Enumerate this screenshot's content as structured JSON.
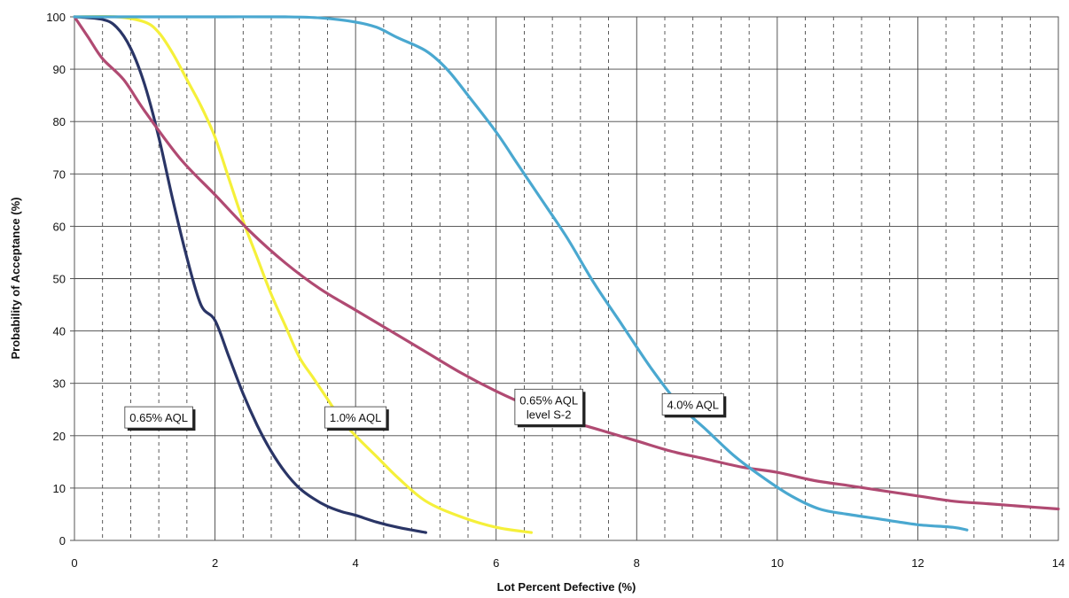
{
  "chart_data": {
    "type": "line",
    "xlabel": "Lot Percent Defective (%)",
    "ylabel": "Probability of Acceptance (%)",
    "xlim": [
      0,
      14
    ],
    "ylim": [
      0,
      100
    ],
    "x_ticks": [
      0,
      2,
      4,
      6,
      8,
      10,
      12,
      14
    ],
    "y_ticks": [
      0,
      10,
      20,
      30,
      40,
      50,
      60,
      70,
      80,
      90,
      100
    ],
    "minor_x_gridlines": true,
    "y_gridlines": true,
    "legend": "none",
    "series": [
      {
        "name": "0.65% AQL",
        "color": "#2a3566",
        "points": [
          [
            0,
            100
          ],
          [
            0.4,
            99.5
          ],
          [
            0.6,
            98
          ],
          [
            0.8,
            94
          ],
          [
            1.0,
            87
          ],
          [
            1.2,
            77
          ],
          [
            1.4,
            65
          ],
          [
            1.6,
            54
          ],
          [
            1.8,
            45
          ],
          [
            2.0,
            42
          ],
          [
            2.2,
            35
          ],
          [
            2.4,
            28
          ],
          [
            2.6,
            22
          ],
          [
            2.8,
            17
          ],
          [
            3.0,
            13
          ],
          [
            3.2,
            10
          ],
          [
            3.4,
            8
          ],
          [
            3.6,
            6.5
          ],
          [
            3.8,
            5.5
          ],
          [
            4.0,
            4.8
          ],
          [
            4.3,
            3.5
          ],
          [
            4.6,
            2.5
          ],
          [
            5.0,
            1.5
          ]
        ]
      },
      {
        "name": "1.0% AQL",
        "color": "#f5f03a",
        "points": [
          [
            0,
            100
          ],
          [
            0.6,
            100
          ],
          [
            1.0,
            99
          ],
          [
            1.2,
            97
          ],
          [
            1.4,
            93
          ],
          [
            1.6,
            88
          ],
          [
            1.8,
            83
          ],
          [
            2.0,
            77
          ],
          [
            2.2,
            69
          ],
          [
            2.4,
            61
          ],
          [
            2.6,
            54
          ],
          [
            2.8,
            47
          ],
          [
            3.0,
            41
          ],
          [
            3.2,
            35
          ],
          [
            3.4,
            31
          ],
          [
            3.6,
            27
          ],
          [
            3.8,
            23
          ],
          [
            4.0,
            20
          ],
          [
            4.3,
            16
          ],
          [
            4.6,
            12
          ],
          [
            5.0,
            7.5
          ],
          [
            5.5,
            4.5
          ],
          [
            6.0,
            2.5
          ],
          [
            6.5,
            1.5
          ]
        ]
      },
      {
        "name": "0.65% AQL level S-2",
        "color": "#b04a72",
        "points": [
          [
            0,
            100
          ],
          [
            0.2,
            96
          ],
          [
            0.4,
            92
          ],
          [
            0.7,
            88
          ],
          [
            1.0,
            82
          ],
          [
            1.5,
            73
          ],
          [
            2.0,
            66
          ],
          [
            2.5,
            59
          ],
          [
            3.0,
            53
          ],
          [
            3.5,
            48
          ],
          [
            4.0,
            44
          ],
          [
            4.5,
            40
          ],
          [
            5.0,
            36
          ],
          [
            5.5,
            32
          ],
          [
            6.0,
            28.5
          ],
          [
            6.5,
            25.5
          ],
          [
            7.0,
            23
          ],
          [
            7.5,
            21
          ],
          [
            8.0,
            19
          ],
          [
            8.5,
            17
          ],
          [
            9.0,
            15.5
          ],
          [
            9.5,
            14
          ],
          [
            10.0,
            13
          ],
          [
            10.5,
            11.5
          ],
          [
            11.0,
            10.5
          ],
          [
            11.5,
            9.5
          ],
          [
            12.0,
            8.5
          ],
          [
            12.5,
            7.5
          ],
          [
            13.0,
            7
          ],
          [
            13.5,
            6.5
          ],
          [
            14.0,
            6
          ]
        ]
      },
      {
        "name": "4.0% AQL",
        "color": "#4aa8d0",
        "points": [
          [
            0,
            100
          ],
          [
            1.0,
            100
          ],
          [
            2.0,
            100
          ],
          [
            3.0,
            100
          ],
          [
            3.5,
            99.8
          ],
          [
            4.0,
            99
          ],
          [
            4.3,
            98
          ],
          [
            4.6,
            96
          ],
          [
            5.0,
            93.5
          ],
          [
            5.3,
            90
          ],
          [
            5.6,
            85
          ],
          [
            6.0,
            78
          ],
          [
            6.3,
            72
          ],
          [
            6.6,
            66
          ],
          [
            7.0,
            58
          ],
          [
            7.4,
            49
          ],
          [
            7.8,
            41
          ],
          [
            8.2,
            33
          ],
          [
            8.6,
            26
          ],
          [
            9.0,
            21
          ],
          [
            9.4,
            16
          ],
          [
            9.8,
            12
          ],
          [
            10.2,
            8.5
          ],
          [
            10.6,
            6
          ],
          [
            11.0,
            5
          ],
          [
            11.5,
            4
          ],
          [
            12.0,
            3
          ],
          [
            12.5,
            2.5
          ],
          [
            12.7,
            2
          ]
        ]
      }
    ],
    "annotations": [
      {
        "text": "0.65% AQL",
        "lines": [
          "0.65% AQL"
        ],
        "x": 1.2,
        "y": 23.5
      },
      {
        "text": "1.0% AQL",
        "lines": [
          "1.0% AQL"
        ],
        "x": 4.0,
        "y": 23.5
      },
      {
        "text": "0.65% AQL level S-2",
        "lines": [
          "0.65% AQL",
          "level S-2"
        ],
        "x": 6.75,
        "y": 25.5
      },
      {
        "text": "4.0% AQL",
        "lines": [
          "4.0% AQL"
        ],
        "x": 8.8,
        "y": 26
      }
    ]
  }
}
